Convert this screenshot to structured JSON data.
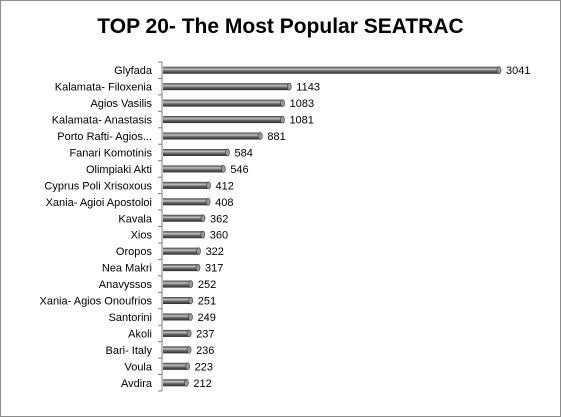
{
  "chart_data": {
    "type": "bar",
    "orientation": "horizontal",
    "title": "TOP 20- The Most Popular SEATRAC",
    "categories": [
      "Glyfada",
      "Kalamata- Filoxenia",
      "Agios Vasilis",
      "Kalamata- Anastasis",
      "Porto Rafti- Agios...",
      "Fanari Komotinis",
      "Olimpiaki Akti",
      "Cyprus Poli Xrisoxous",
      "Xania- Agioi Apostoloi",
      "Kavala",
      "Xios",
      "Oropos",
      "Nea Makri",
      "Anavyssos",
      "Xania- Agios Onoufrios",
      "Santorini",
      "Akoli",
      "Bari- Italy",
      "Voula",
      "Avdira"
    ],
    "values": [
      3041,
      1143,
      1083,
      1081,
      881,
      584,
      546,
      412,
      408,
      362,
      360,
      322,
      317,
      252,
      251,
      249,
      237,
      236,
      223,
      212
    ],
    "labels": [
      "3041",
      "1143",
      "1083",
      "1081",
      "881",
      "584",
      "546",
      "412",
      "408",
      "362",
      "360",
      "322",
      "317",
      "252",
      "251",
      "249",
      "237",
      "236",
      "223",
      "212"
    ],
    "xlabel": "",
    "ylabel": "",
    "xlim": [
      0,
      3041
    ],
    "grid": false,
    "legend": "none",
    "colors": {
      "bar": "#4a4a4a",
      "bar_highlight": "#b8b8b8",
      "axis": "#7f7f7f"
    }
  }
}
